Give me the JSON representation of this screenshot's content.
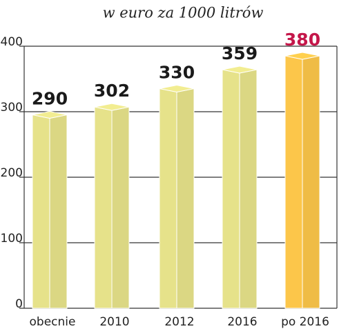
{
  "chart_data": {
    "type": "bar3d",
    "title": "w euro za 1000 litrów",
    "categories": [
      "obecnie",
      "2010",
      "2012",
      "2016",
      "po 2016"
    ],
    "values": [
      290,
      302,
      330,
      359,
      380
    ],
    "colors": [
      "#e6e28a",
      "#e6e28a",
      "#e6e28a",
      "#e6e28a",
      "#fcc64a"
    ],
    "label_colors": [
      "#1a1a1a",
      "#1a1a1a",
      "#1a1a1a",
      "#1a1a1a",
      "#c4174a"
    ],
    "ylim": [
      0,
      400
    ],
    "yticks": [
      0,
      100,
      200,
      300,
      400
    ],
    "grid": true
  }
}
